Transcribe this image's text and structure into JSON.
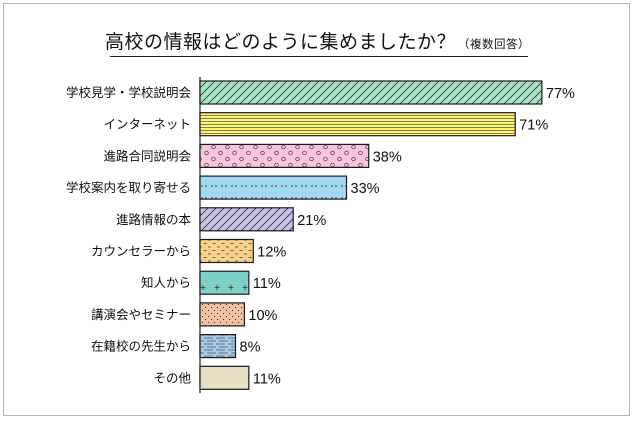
{
  "chart_data": {
    "type": "bar",
    "orientation": "horizontal",
    "title": "高校の情報はどのように集めましたか？",
    "subtitle": "（複数回答）",
    "unit": "%",
    "xlim": [
      0,
      100
    ],
    "categories": [
      "学校見学・学校説明会",
      "インターネット",
      "進路合同説明会",
      "学校案内を取り寄せる",
      "進路情報の本",
      "カウンセラーから",
      "知人から",
      "講演会やセミナー",
      "在籍校の先生から",
      "その他"
    ],
    "values": [
      77,
      71,
      38,
      33,
      21,
      12,
      11,
      10,
      8,
      11
    ],
    "value_labels": [
      "77%",
      "71%",
      "38%",
      "33%",
      "21%",
      "12%",
      "11%",
      "10%",
      "8%",
      "11%"
    ],
    "bar_colors": [
      "#a8e2c4",
      "#fbf57a",
      "#f8c5dd",
      "#9fd8f0",
      "#c9c0e6",
      "#fbd189",
      "#7fd1c8",
      "#f3c2a3",
      "#a9cbe9",
      "#e3dfc3"
    ],
    "patterns": [
      "diagonal-hatch",
      "horizontal-lines",
      "circles",
      "dots",
      "diagonal-hatch",
      "dashes",
      "plus",
      "stipple",
      "lines",
      "solid"
    ],
    "grid": false,
    "legend": "none"
  }
}
